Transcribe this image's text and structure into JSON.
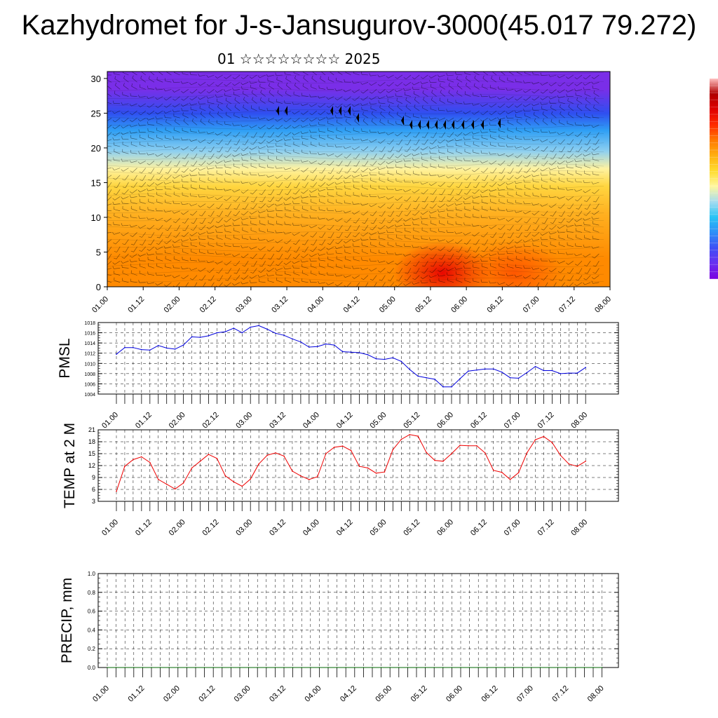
{
  "title": "Kazhydromet for J-s-Jansugurov-3000(45.017 79.272)",
  "subtitle": "01 ☆☆☆☆☆☆☆☆ 2025",
  "colors": {
    "pmsl": "#0000dd",
    "temp": "#ee0000",
    "precip": "#006400",
    "colorbar": [
      "#7a00e0",
      "#6a2ef0",
      "#3f4ff5",
      "#2e8ef7",
      "#27c3f5",
      "#a6dcf0",
      "#fff7a0",
      "#ffdc30",
      "#ffb010",
      "#ff7a00",
      "#ff2a00",
      "#e00000",
      "#b00000",
      "#ffc0c0"
    ]
  },
  "chart_data": [
    {
      "type": "heatmap",
      "name": "wind-temperature cross-section",
      "x_ticks": [
        "01.00",
        "01.12",
        "02.00",
        "02.12",
        "03.00",
        "03.12",
        "04.00",
        "04.12",
        "05.00",
        "05.12",
        "06.00",
        "06.12",
        "07.00",
        "07.12",
        "08.00"
      ],
      "y_ticks": [
        "0",
        "5",
        "10",
        "15",
        "20",
        "25",
        "30"
      ],
      "ylim": [
        0,
        31
      ],
      "xlim": [
        0,
        168
      ],
      "color_bands": [
        {
          "y_from": 0,
          "y_to": 8,
          "color": "#ff8a00"
        },
        {
          "y_from": 8,
          "y_to": 13,
          "color": "#ffb020"
        },
        {
          "y_from": 13,
          "y_to": 16,
          "color": "#ffd640"
        },
        {
          "y_from": 16,
          "y_to": 18,
          "color": "#fff3a0"
        },
        {
          "y_from": 18,
          "y_to": 21,
          "color": "#8fd0f0"
        },
        {
          "y_from": 21,
          "y_to": 24,
          "color": "#2f9ff5"
        },
        {
          "y_from": 24,
          "y_to": 26,
          "color": "#2f4ff0"
        },
        {
          "y_from": 26,
          "y_to": 31,
          "color": "#7a2ee8"
        }
      ],
      "hot_spots": [
        {
          "x": 112,
          "y": 2,
          "color": "#e80000"
        },
        {
          "x": 136,
          "y": 2,
          "color": "#ff4a00"
        }
      ]
    },
    {
      "type": "line",
      "name": "pressure",
      "ylabel": "PMSL",
      "x_ticks": [
        "01.00",
        "01.12",
        "02.00",
        "02.12",
        "03.00",
        "03.12",
        "04.00",
        "04.12",
        "05.00",
        "05.12",
        "06.00",
        "06.12",
        "07.00",
        "07.12",
        "08.00"
      ],
      "y_ticks": [
        "1004",
        "1006",
        "1008",
        "1010",
        "1012",
        "1014",
        "1016",
        "1018"
      ],
      "ylim": [
        1004,
        1018
      ],
      "x_step_hours": 3,
      "values": [
        1011.8,
        1013.1,
        1013.1,
        1012.7,
        1012.6,
        1013.5,
        1013.0,
        1012.8,
        1013.6,
        1015.2,
        1015.1,
        1015.4,
        1016.0,
        1016.2,
        1016.9,
        1016.0,
        1017.1,
        1017.4,
        1016.7,
        1015.9,
        1015.5,
        1014.8,
        1014.2,
        1013.2,
        1013.3,
        1013.8,
        1013.6,
        1012.3,
        1012.2,
        1012.1,
        1011.7,
        1010.9,
        1010.8,
        1011.1,
        1010.4,
        1008.8,
        1007.5,
        1007.2,
        1006.9,
        1005.4,
        1005.4,
        1007.0,
        1008.5,
        1008.7,
        1008.9,
        1008.9,
        1008.3,
        1007.2,
        1007.1,
        1008.2,
        1009.4,
        1008.6,
        1008.6,
        1008.0,
        1008.1,
        1008.1,
        1009.2
      ]
    },
    {
      "type": "line",
      "name": "temperature",
      "ylabel": "TEMP at 2 M",
      "x_ticks": [
        "01.00",
        "01.12",
        "02.00",
        "02.12",
        "03.00",
        "03.12",
        "04.00",
        "04.12",
        "05.00",
        "05.12",
        "06.00",
        "06.12",
        "07.00",
        "07.12",
        "08.00"
      ],
      "y_ticks": [
        "3",
        "6",
        "9",
        "12",
        "15",
        "18",
        "21"
      ],
      "ylim": [
        3,
        21
      ],
      "x_step_hours": 3,
      "values": [
        5.5,
        11.8,
        13.5,
        14.2,
        12.8,
        8.5,
        7.3,
        6.1,
        7.6,
        11.4,
        13.1,
        14.8,
        13.8,
        9.4,
        7.9,
        6.8,
        8.6,
        12.4,
        14.6,
        15.2,
        14.4,
        10.6,
        9.4,
        8.5,
        9.2,
        15.0,
        16.6,
        16.9,
        15.8,
        11.8,
        11.4,
        10.1,
        10.4,
        16.0,
        18.6,
        19.8,
        19.4,
        15.3,
        13.3,
        13.1,
        15.0,
        17.1,
        17.0,
        17.0,
        15.2,
        10.8,
        10.3,
        8.5,
        10.2,
        15.2,
        18.5,
        19.3,
        17.8,
        14.6,
        12.4,
        11.8,
        13.1
      ]
    },
    {
      "type": "line",
      "name": "precipitation",
      "ylabel": "PRECIP, mm",
      "x_ticks": [
        "01.00",
        "01.12",
        "02.00",
        "02.12",
        "03.00",
        "03.12",
        "04.00",
        "04.12",
        "05.00",
        "05.12",
        "06.00",
        "06.12",
        "07.00",
        "07.12",
        "08.00"
      ],
      "y_ticks": [
        "0.0",
        "0.2",
        "0.4",
        "0.6",
        "0.8",
        "1.0"
      ],
      "ylim": [
        0,
        1
      ],
      "x_step_hours": 3,
      "values": [
        0,
        0,
        0,
        0,
        0,
        0,
        0,
        0,
        0,
        0,
        0,
        0,
        0,
        0,
        0,
        0,
        0,
        0,
        0,
        0,
        0,
        0,
        0,
        0,
        0,
        0,
        0,
        0,
        0,
        0,
        0,
        0,
        0,
        0,
        0,
        0,
        0,
        0,
        0,
        0,
        0,
        0,
        0,
        0,
        0,
        0,
        0,
        0,
        0,
        0,
        0,
        0,
        0,
        0,
        0,
        0,
        0
      ]
    }
  ]
}
